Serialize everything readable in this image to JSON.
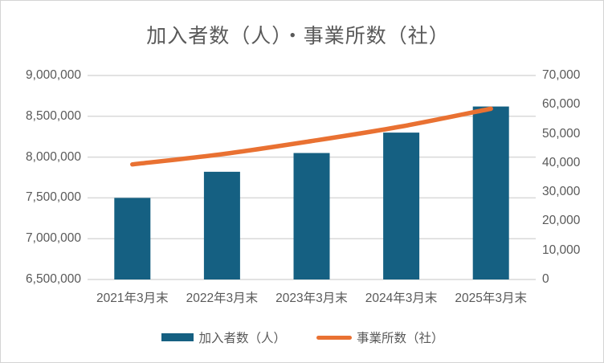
{
  "title": "加入者数（人）・事業所数（社）",
  "chart_data": {
    "type": "combo",
    "categories": [
      "2021年3月末",
      "2022年3月末",
      "2023年3月末",
      "2024年3月末",
      "2025年3月末"
    ],
    "series": [
      {
        "name": "加入者数（人）",
        "type": "bar",
        "axis": "left",
        "color": "#156082",
        "values": [
          7500000,
          7820000,
          8050000,
          8300000,
          8620000
        ]
      },
      {
        "name": "事業所数（社）",
        "type": "line",
        "axis": "right",
        "color": "#E97132",
        "smooth": true,
        "values": [
          39500,
          43000,
          47500,
          52500,
          58600
        ]
      }
    ],
    "axes": {
      "left": {
        "min": 6500000,
        "max": 9000000,
        "step": 500000
      },
      "right": {
        "min": 0,
        "max": 70000,
        "step": 10000
      }
    },
    "grid": true,
    "legend_position": "bottom",
    "colors": {
      "text": "#595959",
      "gridline": "#D9D9D9",
      "background": "#FFFFFF"
    }
  }
}
